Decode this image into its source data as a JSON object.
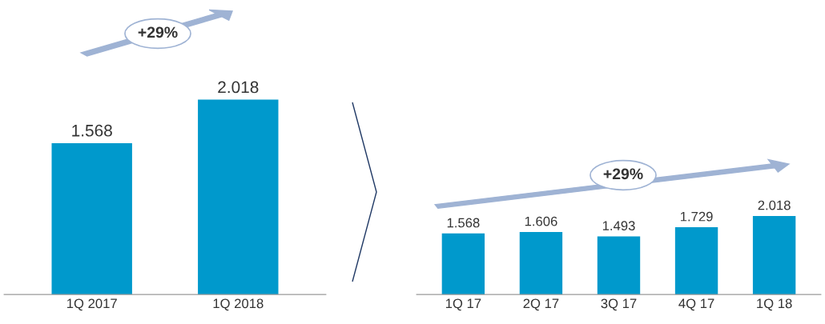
{
  "chart_data": [
    {
      "type": "bar",
      "categories": [
        "1Q 2017",
        "1Q 2018"
      ],
      "values": [
        1.568,
        2.018
      ],
      "color": "#0099cc",
      "data_labels": true,
      "tick_labels": "x",
      "annotations": [
        "+29%"
      ]
    },
    {
      "type": "bar",
      "categories": [
        "1Q 17",
        "2Q 17",
        "3Q 17",
        "4Q 17",
        "1Q 18"
      ],
      "values": [
        1.568,
        1.606,
        1.493,
        1.729,
        2.018
      ],
      "color": "#0099cc",
      "data_labels": true,
      "tick_labels": "x",
      "annotations": [
        "+29%"
      ]
    }
  ]
}
